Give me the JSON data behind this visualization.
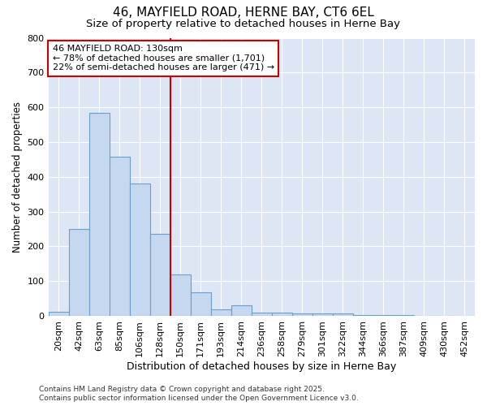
{
  "title_line1": "46, MAYFIELD ROAD, HERNE BAY, CT6 6EL",
  "title_line2": "Size of property relative to detached houses in Herne Bay",
  "xlabel": "Distribution of detached houses by size in Herne Bay",
  "ylabel": "Number of detached properties",
  "categories": [
    "20sqm",
    "42sqm",
    "63sqm",
    "85sqm",
    "106sqm",
    "128sqm",
    "150sqm",
    "171sqm",
    "193sqm",
    "214sqm",
    "236sqm",
    "258sqm",
    "279sqm",
    "301sqm",
    "322sqm",
    "344sqm",
    "366sqm",
    "387sqm",
    "409sqm",
    "430sqm",
    "452sqm"
  ],
  "values": [
    12,
    250,
    585,
    458,
    380,
    235,
    120,
    68,
    18,
    30,
    10,
    10,
    8,
    7,
    8,
    2,
    2,
    2,
    1,
    0,
    0
  ],
  "bar_color": "#c5d8f0",
  "bar_edge_color": "#6a9fcb",
  "red_line_index": 5.5,
  "ylim": [
    0,
    800
  ],
  "yticks": [
    0,
    100,
    200,
    300,
    400,
    500,
    600,
    700,
    800
  ],
  "annotation_text": "46 MAYFIELD ROAD: 130sqm\n← 78% of detached houses are smaller (1,701)\n22% of semi-detached houses are larger (471) →",
  "annotation_box_color": "#ffffff",
  "annotation_box_edge_color": "#cc0000",
  "background_color": "#dce6f5",
  "grid_color": "#ffffff",
  "fig_background": "#ffffff",
  "footnote1": "Contains HM Land Registry data © Crown copyright and database right 2025.",
  "footnote2": "Contains public sector information licensed under the Open Government Licence v3.0.",
  "title_fontsize": 11,
  "subtitle_fontsize": 9.5,
  "xlabel_fontsize": 9,
  "ylabel_fontsize": 8.5,
  "tick_fontsize": 8,
  "annotation_fontsize": 8,
  "footnote_fontsize": 6.5
}
